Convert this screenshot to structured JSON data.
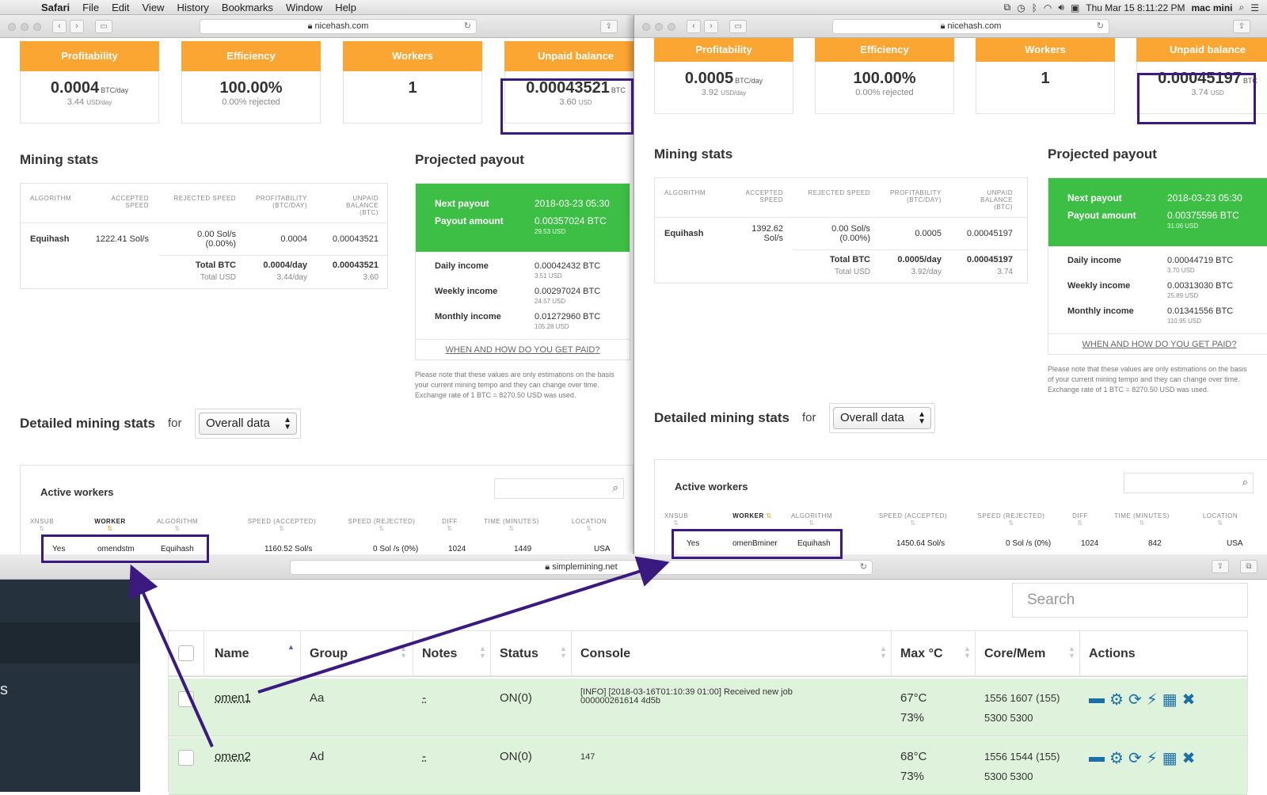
{
  "menubar": {
    "app": "Safari",
    "items": [
      "File",
      "Edit",
      "View",
      "History",
      "Bookmarks",
      "Window",
      "Help"
    ],
    "clock": "Thu Mar 15  8:11:22 PM",
    "user": "mac mini"
  },
  "left_window": {
    "url": "nicehash.com",
    "cards": [
      {
        "title": "Profitability",
        "value": "0.0004",
        "unit": "BTC/day",
        "sub": "3.44",
        "sub_unit": "USD/day"
      },
      {
        "title": "Efficiency",
        "value": "100.00%",
        "unit": "",
        "sub": "0.00% rejected",
        "sub_unit": ""
      },
      {
        "title": "Workers",
        "value": "1",
        "unit": "",
        "sub": "",
        "sub_unit": ""
      },
      {
        "title": "Unpaid balance",
        "value": "0.00043521",
        "unit": "BTC",
        "sub": "3.60",
        "sub_unit": "USD"
      }
    ],
    "mining_stats_title": "Mining stats",
    "stats_headers": [
      "ALGORITHM",
      "ACCEPTED SPEED",
      "REJECTED SPEED",
      "PROFITABILITY (BTC/DAY)",
      "UNPAID BALANCE (BTC)"
    ],
    "stats_row": {
      "algorithm": "Equihash",
      "accepted": "1222.41 Sol/s",
      "rejected": "0.00 Sol/s (0.00%)",
      "profitability": "0.0004",
      "unpaid": "0.00043521"
    },
    "total_btc_label": "Total BTC",
    "total_btc_prof": "0.0004/day",
    "total_btc_unpaid": "0.00043521",
    "total_usd_label": "Total USD",
    "total_usd_prof": "3.44/day",
    "total_usd_unpaid": "3.60",
    "payout_title": "Projected payout",
    "next_payout_label": "Next payout",
    "next_payout_value": "2018-03-23 05:30",
    "payout_amount_label": "Payout amount",
    "payout_amount_value": "0.00357024 BTC",
    "payout_amount_usd": "29.53 USD",
    "daily_label": "Daily income",
    "daily_value": "0.00042432 BTC",
    "daily_usd": "3.51 USD",
    "weekly_label": "Weekly income",
    "weekly_value": "0.00297024 BTC",
    "weekly_usd": "24.57 USD",
    "monthly_label": "Monthly income",
    "monthly_value": "0.01272960 BTC",
    "monthly_usd": "105.28 USD",
    "paid_link": "WHEN AND HOW DO YOU GET PAID?",
    "note1": "Please note that these values are only estimations on the basis",
    "note2": "your current mining tempo and they can change over time.",
    "note3": "Exchange rate of 1 BTC = 8270.50 USD was used.",
    "detailed_title": "Detailed mining stats",
    "for_label": "for",
    "select_value": "Overall data",
    "active_workers": "Active workers",
    "worker_headers": [
      "XNSUB",
      "WORKER",
      "ALGORITHM",
      "SPEED (ACCEPTED)",
      "SPEED (REJECTED)",
      "DIFF",
      "TIME (MINUTES)",
      "LOCATION"
    ],
    "worker_row": {
      "xnsub": "Yes",
      "worker": "omendstm",
      "algorithm": "Equihash",
      "speed_acc": "1160.52 Sol/s",
      "speed_rej": "0 Sol /s (0%)",
      "diff": "1024",
      "time": "1449",
      "location": "USA"
    }
  },
  "right_window": {
    "url": "nicehash.com",
    "cards": [
      {
        "title": "Profitability",
        "value": "0.0005",
        "unit": "BTC/day",
        "sub": "3.92",
        "sub_unit": "USD/day"
      },
      {
        "title": "Efficiency",
        "value": "100.00%",
        "unit": "",
        "sub": "0.00% rejected",
        "sub_unit": ""
      },
      {
        "title": "Workers",
        "value": "1",
        "unit": "",
        "sub": "",
        "sub_unit": ""
      },
      {
        "title": "Unpaid balance",
        "value": "0.00045197",
        "unit": "BTC",
        "sub": "3.74",
        "sub_unit": "USD"
      }
    ],
    "mining_stats_title": "Mining stats",
    "stats_headers": [
      "ALGORITHM",
      "ACCEPTED SPEED",
      "REJECTED SPEED",
      "PROFITABILITY (BTC/DAY)",
      "UNPAID BALANCE (BTC)"
    ],
    "stats_row": {
      "algorithm": "Equihash",
      "accepted": "1392.62 Sol/s",
      "rejected": "0.00 Sol/s (0.00%)",
      "profitability": "0.0005",
      "unpaid": "0.00045197"
    },
    "total_btc_label": "Total BTC",
    "total_btc_prof": "0.0005/day",
    "total_btc_unpaid": "0.00045197",
    "total_usd_label": "Total USD",
    "total_usd_prof": "3.92/day",
    "total_usd_unpaid": "3.74",
    "payout_title": "Projected payout",
    "next_payout_label": "Next payout",
    "next_payout_value": "2018-03-23 05:30",
    "payout_amount_label": "Payout amount",
    "payout_amount_value": "0.00375596 BTC",
    "payout_amount_usd": "31.06 USD",
    "daily_label": "Daily income",
    "daily_value": "0.00044719 BTC",
    "daily_usd": "3.70 USD",
    "weekly_label": "Weekly income",
    "weekly_value": "0.00313030 BTC",
    "weekly_usd": "25.89 USD",
    "monthly_label": "Monthly income",
    "monthly_value": "0.01341556 BTC",
    "monthly_usd": "110.95 USD",
    "paid_link": "WHEN AND HOW DO YOU GET PAID?",
    "note1": "Please note that these values are only estimations on the basis",
    "note2": "of your current mining tempo and they can change over time.",
    "note3": "Exchange rate of 1 BTC = 8270.50 USD was used.",
    "detailed_title": "Detailed mining stats",
    "for_label": "for",
    "select_value": "Overall data",
    "active_workers": "Active workers",
    "worker_headers": [
      "XNSUB",
      "WORKER",
      "ALGORITHM",
      "SPEED (ACCEPTED)",
      "SPEED (REJECTED)",
      "DIFF",
      "TIME (MINUTES)",
      "LOCATION"
    ],
    "worker_row": {
      "xnsub": "Yes",
      "worker": "omenBminer",
      "algorithm": "Equihash",
      "speed_acc": "1450.64 Sol/s",
      "speed_rej": "0 Sol /s (0%)",
      "diff": "1024",
      "time": "842",
      "location": "USA"
    }
  },
  "bottom_window": {
    "url": "simplemining.net",
    "sidebar_text": "s",
    "search_placeholder": "Search",
    "headers": [
      "Name",
      "Group",
      "Notes",
      "Status",
      "Console",
      "Max °C",
      "Core/Mem",
      "Actions"
    ],
    "rows": [
      {
        "name": "omen1",
        "group": "Aa",
        "notes": "-",
        "status": "ON(0)",
        "console1": "[INFO] [2018-03-16T01:10:39 01:00] Received new job",
        "console2": "000000261614 4d5b",
        "temp": "67°C",
        "fan": "73%",
        "core": "1556 1607 (155)",
        "mem": "5300 5300"
      },
      {
        "name": "omen2",
        "group": "Ad",
        "notes": "-",
        "status": "ON(0)",
        "console1": "147",
        "console2": "",
        "temp": "68°C",
        "fan": "73%",
        "core": "1556 1544 (155)",
        "mem": "5300 5300"
      }
    ]
  },
  "colors": {
    "orange": "#fba533",
    "green": "#3cbf44",
    "highlight": "#3a1a7e",
    "row_green": "#dff3dc",
    "action_blue": "#1c6fa8"
  }
}
